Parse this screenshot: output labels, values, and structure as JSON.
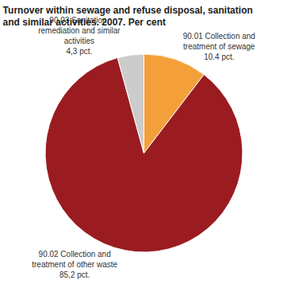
{
  "chart_data": {
    "type": "pie",
    "title": "Turnover within sewage and refuse disposal, sanitation and similar activities. 2007. Per cent",
    "categories": [
      "90.01 Collection and treatment of sewage",
      "90.02 Collection and treatment of other waste",
      "90.03 Sanitation, remediation and similar activities"
    ],
    "values": [
      10.4,
      85.2,
      4.3
    ],
    "value_labels": [
      "10.4 pct.",
      "85,2 pct.",
      "4,3 pct."
    ],
    "colors": [
      "#f4a03a",
      "#9a1c20",
      "#cccccc"
    ],
    "data_labels": true
  }
}
